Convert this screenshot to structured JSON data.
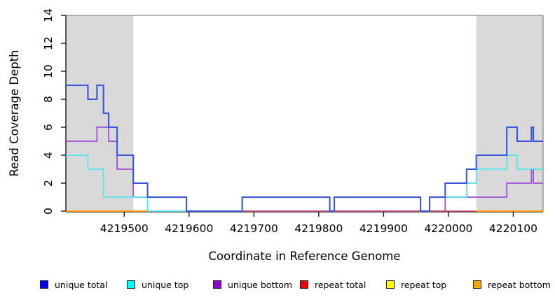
{
  "chart_data": {
    "type": "line",
    "subtype": "step-coverage",
    "title": "",
    "xlabel": "Coordinate in Reference Genome",
    "ylabel": "Read Coverage Depth",
    "xlim": [
      4219410,
      4220146
    ],
    "ylim": [
      0,
      14
    ],
    "xticks": [
      4219500,
      4219600,
      4219700,
      4219800,
      4219900,
      4220000,
      4220100
    ],
    "yticks": [
      0,
      2,
      4,
      6,
      8,
      10,
      12,
      14
    ],
    "grid": false,
    "shaded_region_color": "#d9d9d9",
    "shaded_regions": [
      {
        "x0": 4219410,
        "x1": 4219514
      },
      {
        "x0": 4220043,
        "x1": 4220146
      }
    ],
    "series": [
      {
        "name": "unique bottom",
        "color": "#a050d8",
        "width": 1.8,
        "points": [
          [
            4219410,
            5
          ],
          [
            4219458,
            6
          ],
          [
            4219476,
            5
          ],
          [
            4219489,
            3
          ],
          [
            4219514,
            1
          ],
          [
            4219596,
            0
          ],
          [
            4219995,
            1
          ],
          [
            4220090,
            2
          ],
          [
            4220128,
            3
          ],
          [
            4220131,
            2
          ]
        ]
      },
      {
        "name": "repeat total",
        "color": "#c84a63",
        "width": 1.6,
        "points": [
          [
            4219410,
            0
          ]
        ]
      },
      {
        "name": "repeat top",
        "color": "#ffff00",
        "width": 1.6,
        "value": 0,
        "ranges": [
          [
            4219410,
            4219537
          ],
          [
            4220043,
            4220146
          ]
        ]
      },
      {
        "name": "repeat bottom",
        "color": "#ff9800",
        "width": 1.8,
        "value": 0,
        "ranges": [
          [
            4219410,
            4219537
          ],
          [
            4220043,
            4220146
          ]
        ]
      },
      {
        "name": "unique top",
        "color": "#55e5ea",
        "width": 1.8,
        "points": [
          [
            4219410,
            4
          ],
          [
            4219444,
            3
          ],
          [
            4219468,
            1
          ],
          [
            4219536,
            0
          ],
          [
            4219682,
            1
          ],
          [
            4219817,
            0
          ],
          [
            4219824,
            1
          ],
          [
            4219957,
            0
          ],
          [
            4219971,
            1
          ],
          [
            4220028,
            2
          ],
          [
            4220043,
            3
          ],
          [
            4220090,
            4
          ],
          [
            4220106,
            3
          ]
        ]
      },
      {
        "name": "unique total",
        "color": "#3a55e0",
        "width": 2.1,
        "points": [
          [
            4219410,
            9
          ],
          [
            4219444,
            8
          ],
          [
            4219458,
            9
          ],
          [
            4219468,
            7
          ],
          [
            4219476,
            6
          ],
          [
            4219489,
            4
          ],
          [
            4219514,
            2
          ],
          [
            4219536,
            1
          ],
          [
            4219596,
            0
          ],
          [
            4219682,
            1
          ],
          [
            4219817,
            0
          ],
          [
            4219824,
            1
          ],
          [
            4219957,
            0
          ],
          [
            4219971,
            1
          ],
          [
            4219995,
            2
          ],
          [
            4220028,
            3
          ],
          [
            4220043,
            4
          ],
          [
            4220090,
            6
          ],
          [
            4220106,
            5
          ],
          [
            4220128,
            6
          ],
          [
            4220131,
            5
          ]
        ]
      }
    ]
  },
  "legend": {
    "items": [
      {
        "label": "unique total",
        "color": "#0000ee"
      },
      {
        "label": "unique top",
        "color": "#00ffff"
      },
      {
        "label": "unique bottom",
        "color": "#9400d3"
      },
      {
        "label": "repeat total",
        "color": "#ee0000"
      },
      {
        "label": "repeat top",
        "color": "#ffff00"
      },
      {
        "label": "repeat bottom",
        "color": "#ffa500"
      }
    ]
  },
  "axes": {
    "box_color": "#8a8a8a",
    "axis_color": "#1a1a1a",
    "tick_label_size": 15.5,
    "axis_label_size": 16.5
  }
}
